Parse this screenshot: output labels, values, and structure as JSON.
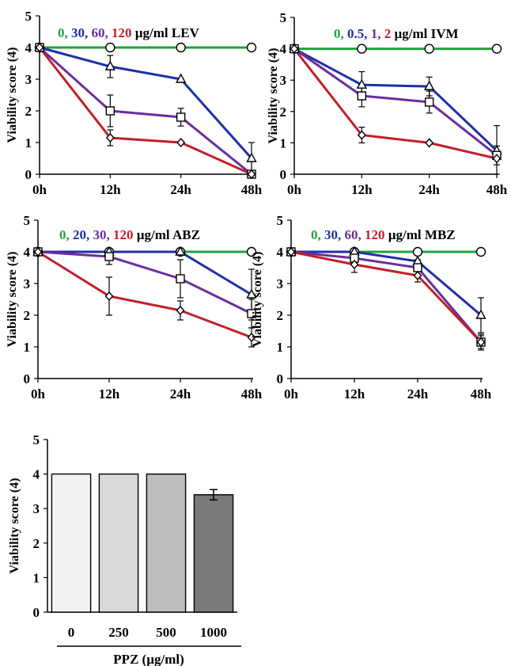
{
  "chart_data": [
    {
      "type": "line",
      "x": [
        "0h",
        "12h",
        "24h",
        "48h"
      ],
      "ylabel": "Viability score (4)",
      "ylim": [
        0,
        5
      ],
      "yticks": [
        "0",
        "1",
        "2",
        "3",
        "4",
        "5"
      ],
      "legend": [
        {
          "text": "0,",
          "color": "#22a33a"
        },
        {
          "text": "30,",
          "color": "#1f2fa8"
        },
        {
          "text": "60,",
          "color": "#6a2e9e"
        },
        {
          "text": "120",
          "color": "#c0202a"
        },
        {
          "text": "µg/ml LEV",
          "color": "#000000"
        }
      ],
      "series": [
        {
          "color": "#22a33a",
          "marker": "circle",
          "values": [
            4,
            4,
            4,
            4
          ],
          "err": [
            0,
            0,
            0,
            0
          ]
        },
        {
          "color": "#1f2fa8",
          "marker": "triangle",
          "values": [
            4,
            3.4,
            3.0,
            0.5
          ],
          "err": [
            0,
            0.35,
            0,
            0.5
          ]
        },
        {
          "color": "#6a2e9e",
          "marker": "square",
          "values": [
            4,
            2.0,
            1.8,
            0.0
          ],
          "err": [
            0,
            0.5,
            0.28,
            0
          ]
        },
        {
          "color": "#c0202a",
          "marker": "diamond",
          "values": [
            4,
            1.15,
            1.0,
            0.0
          ],
          "err": [
            0,
            0.25,
            0,
            0
          ]
        }
      ]
    },
    {
      "type": "line",
      "x": [
        "0h",
        "12h",
        "24h",
        "48h"
      ],
      "ylabel": "Viability score (4)",
      "ylim": [
        0,
        5
      ],
      "yticks": [
        "0",
        "1",
        "2",
        "3",
        "4",
        "5"
      ],
      "legend": [
        {
          "text": "0,",
          "color": "#22a33a"
        },
        {
          "text": "0.5,",
          "color": "#1f2fa8"
        },
        {
          "text": "1,",
          "color": "#6a2e9e"
        },
        {
          "text": "2",
          "color": "#c0202a"
        },
        {
          "text": "µg/ml IVM",
          "color": "#000000"
        }
      ],
      "series": [
        {
          "color": "#22a33a",
          "marker": "circle",
          "values": [
            4,
            4,
            4,
            4
          ],
          "err": [
            0,
            0,
            0,
            0
          ]
        },
        {
          "color": "#1f2fa8",
          "marker": "triangle",
          "values": [
            4,
            2.85,
            2.8,
            0.75
          ],
          "err": [
            0,
            0.42,
            0.3,
            0.8
          ]
        },
        {
          "color": "#6a2e9e",
          "marker": "square",
          "values": [
            4,
            2.5,
            2.3,
            0.6
          ],
          "err": [
            0,
            0.35,
            0.35,
            0.3
          ]
        },
        {
          "color": "#c0202a",
          "marker": "diamond",
          "values": [
            4,
            1.25,
            1.0,
            0.5
          ],
          "err": [
            0,
            0.25,
            0,
            0
          ]
        }
      ]
    },
    {
      "type": "line",
      "x": [
        "0h",
        "12h",
        "24h",
        "48h"
      ],
      "ylabel": "Viability score (4)",
      "ylim": [
        0,
        5
      ],
      "yticks": [
        "0",
        "1",
        "2",
        "3",
        "4",
        "5"
      ],
      "legend": [
        {
          "text": "0,",
          "color": "#22a33a"
        },
        {
          "text": "20,",
          "color": "#1f2fa8"
        },
        {
          "text": "30,",
          "color": "#6a2e9e"
        },
        {
          "text": "120",
          "color": "#c0202a"
        },
        {
          "text": "µg/ml ABZ",
          "color": "#000000"
        }
      ],
      "series": [
        {
          "color": "#22a33a",
          "marker": "circle",
          "values": [
            4,
            4,
            4,
            4
          ],
          "err": [
            0,
            0,
            0,
            0
          ]
        },
        {
          "color": "#1f2fa8",
          "marker": "triangle",
          "values": [
            4,
            4,
            4,
            2.65
          ],
          "err": [
            0,
            0,
            0,
            0.8
          ]
        },
        {
          "color": "#6a2e9e",
          "marker": "square",
          "values": [
            4,
            3.85,
            3.15,
            2.05
          ],
          "err": [
            0,
            0.25,
            0.6,
            0.45
          ]
        },
        {
          "color": "#c0202a",
          "marker": "diamond",
          "values": [
            4,
            2.6,
            2.15,
            1.3
          ],
          "err": [
            0,
            0.6,
            0.3,
            0.3
          ]
        }
      ]
    },
    {
      "type": "line",
      "x": [
        "0h",
        "12h",
        "24h",
        "48h"
      ],
      "ylabel": "Viability score (4)",
      "ylim": [
        0,
        5
      ],
      "yticks": [
        "0",
        "1",
        "2",
        "3",
        "4",
        "5"
      ],
      "legend": [
        {
          "text": "0,",
          "color": "#22a33a"
        },
        {
          "text": "30,",
          "color": "#1f2fa8"
        },
        {
          "text": "60,",
          "color": "#6a2e9e"
        },
        {
          "text": "120",
          "color": "#c0202a"
        },
        {
          "text": "µg/ml MBZ",
          "color": "#000000"
        }
      ],
      "series": [
        {
          "color": "#22a33a",
          "marker": "circle",
          "values": [
            4,
            4,
            4,
            4
          ],
          "err": [
            0,
            0,
            0,
            0
          ]
        },
        {
          "color": "#1f2fa8",
          "marker": "triangle",
          "values": [
            4,
            4,
            3.7,
            2.0
          ],
          "err": [
            0,
            0,
            0,
            0.55
          ]
        },
        {
          "color": "#6a2e9e",
          "marker": "square",
          "values": [
            4,
            3.8,
            3.5,
            1.15
          ],
          "err": [
            0,
            0.15,
            0.25,
            0.2
          ]
        },
        {
          "color": "#c0202a",
          "marker": "diamond",
          "values": [
            4,
            3.6,
            3.25,
            1.15
          ],
          "err": [
            0,
            0.25,
            0.2,
            0.25
          ]
        }
      ]
    },
    {
      "type": "bar",
      "categories": [
        "0",
        "250",
        "500",
        "1000"
      ],
      "values": [
        4,
        4,
        4,
        3.4
      ],
      "err": [
        0,
        0,
        0,
        0.15
      ],
      "colors": [
        "#f2f2f2",
        "#d9d9d9",
        "#bdbdbd",
        "#7a7a7a"
      ],
      "ylabel": "Viability score (4)",
      "xlabel": "PPZ (µg/ml)",
      "ylim": [
        0,
        5
      ],
      "yticks": [
        "0",
        "1",
        "2",
        "3",
        "4",
        "5"
      ]
    }
  ]
}
